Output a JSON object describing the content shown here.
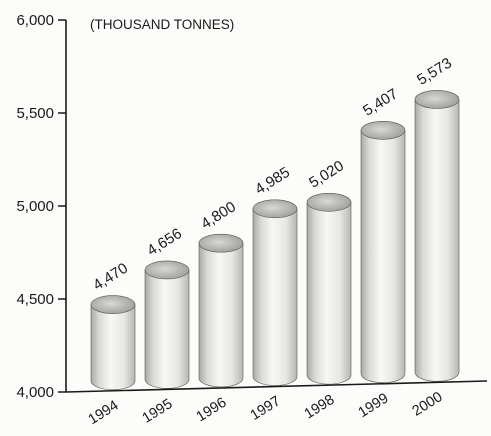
{
  "chart_data": {
    "type": "bar",
    "style": "3d-cylinder",
    "title": "",
    "unit_label": "(THOUSAND TONNES)",
    "xlabel": "",
    "ylabel": "",
    "categories": [
      "1994",
      "1995",
      "1996",
      "1997",
      "1998",
      "1999",
      "2000"
    ],
    "values": [
      4470,
      4656,
      4800,
      4985,
      5020,
      5407,
      5573
    ],
    "value_labels": [
      "4,470",
      "4,656",
      "4,800",
      "4,985",
      "5,020",
      "5,407",
      "5,573"
    ],
    "ylim": [
      4000,
      6000
    ],
    "yticks": [
      4000,
      4500,
      5000,
      5500,
      6000
    ],
    "ytick_labels": [
      "4,000",
      "4,500",
      "5,000",
      "5,500",
      "6,000"
    ],
    "grid": false,
    "legend": "none",
    "bar_color": "#e9e9e6"
  }
}
